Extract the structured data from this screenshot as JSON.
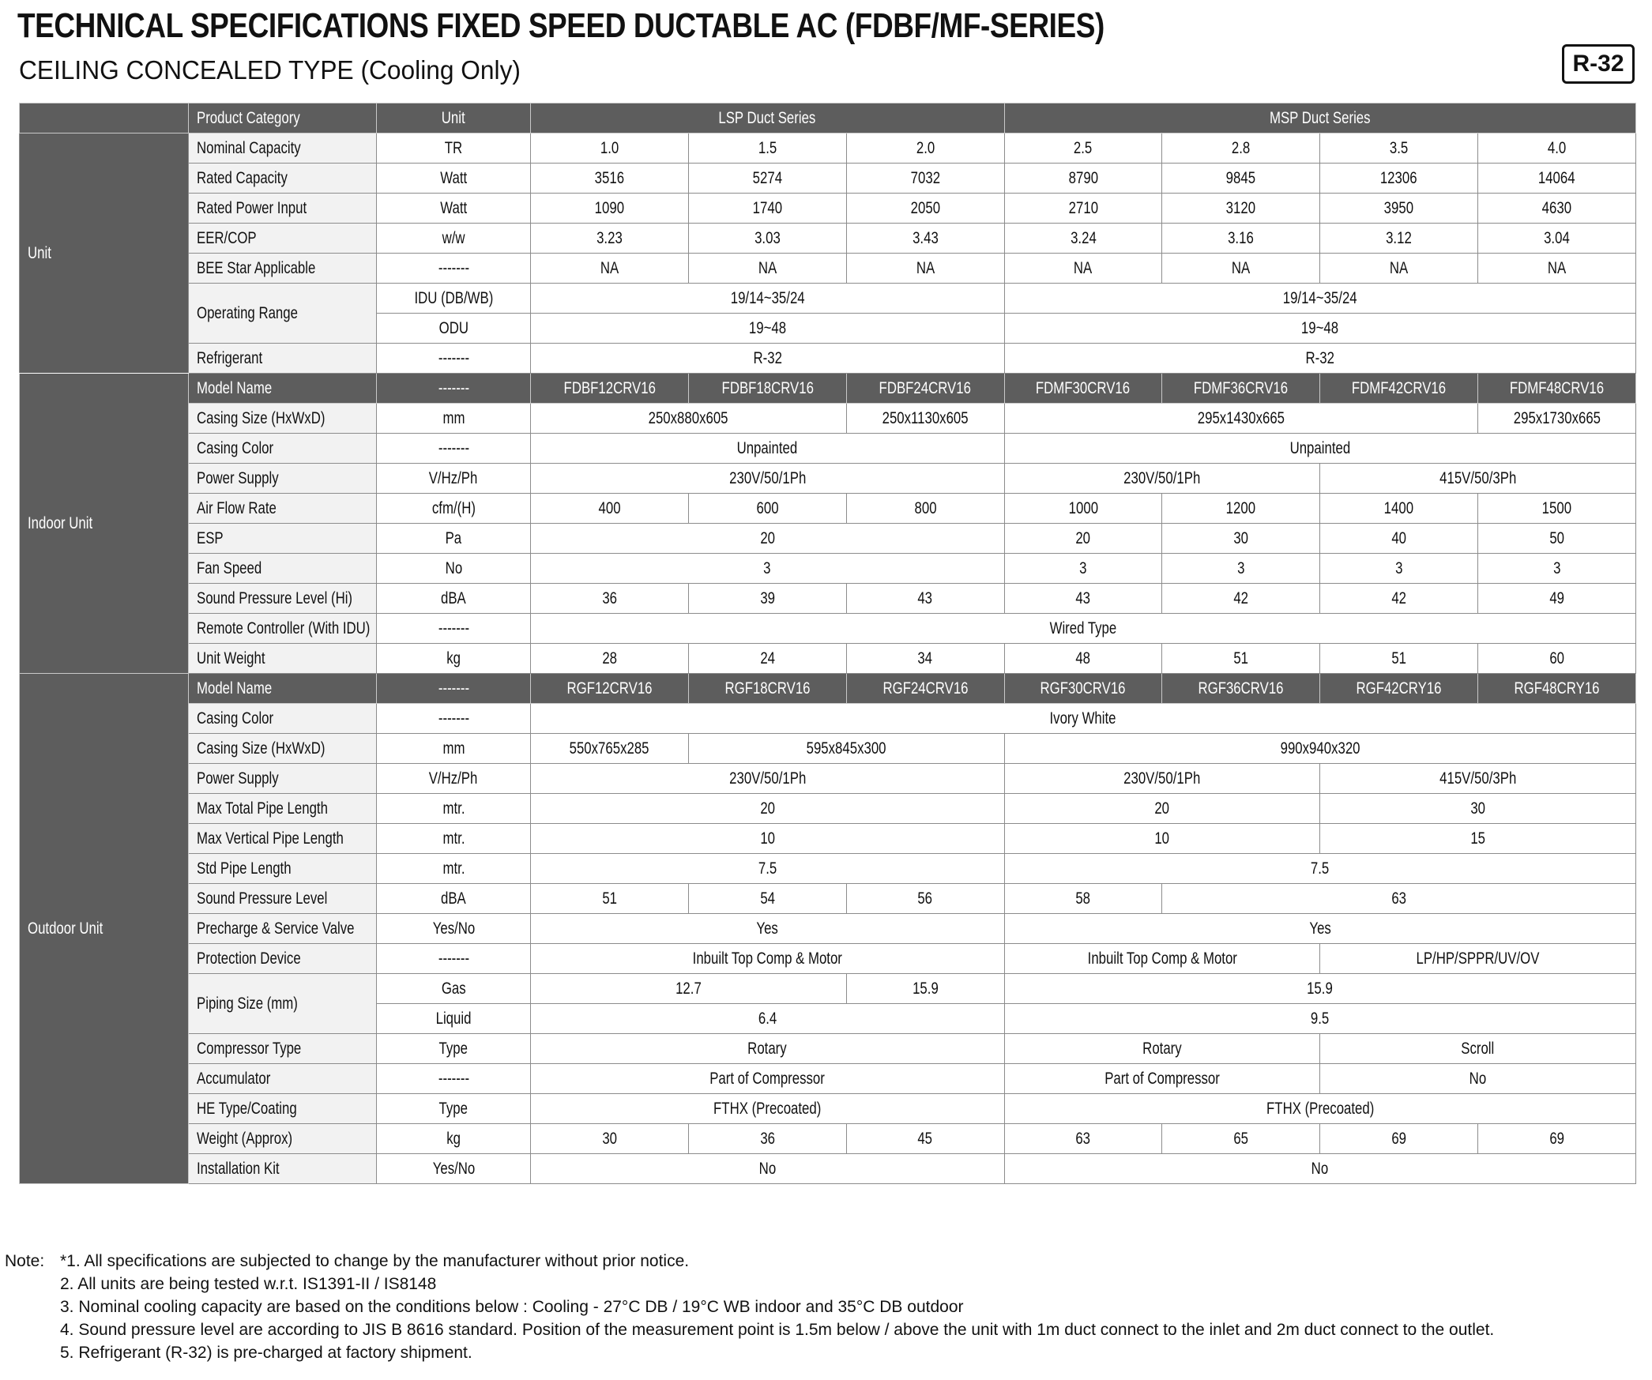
{
  "header": {
    "title": "TECHNICAL SPECIFICATIONS FIXED SPEED DUCTABLE AC (FDBF/MF-SERIES)",
    "subtitle": "CEILING CONCEALED  TYPE (Cooling Only)",
    "badge": "R-32"
  },
  "table": {
    "head": {
      "label": "Product Category",
      "unit": "Unit",
      "cells": [
        "LSP Duct Series",
        null,
        null,
        "MSP Duct Series",
        null,
        null,
        null
      ]
    },
    "sections": [
      {
        "name": "Unit",
        "rows": [
          {
            "label": "Nominal Capacity",
            "unit": "TR",
            "cells": [
              "1.0",
              "1.5",
              "2.0",
              "2.5",
              "2.8",
              "3.5",
              "4.0"
            ]
          },
          {
            "label": "Rated Capacity",
            "unit": "Watt",
            "cells": [
              "3516",
              "5274",
              "7032",
              "8790",
              "9845",
              "12306",
              "14064"
            ]
          },
          {
            "label": "Rated Power Input",
            "unit": "Watt",
            "cells": [
              "1090",
              "1740",
              "2050",
              "2710",
              "3120",
              "3950",
              "4630"
            ]
          },
          {
            "label": "EER/COP",
            "unit": "w/w",
            "cells": [
              "3.23",
              "3.03",
              "3.43",
              "3.24",
              "3.16",
              "3.12",
              "3.04"
            ]
          },
          {
            "label": "BEE Star Applicable",
            "unit": "-------",
            "cells": [
              "NA",
              "NA",
              "NA",
              "NA",
              "NA",
              "NA",
              "NA"
            ]
          },
          {
            "label": "Operating Range",
            "subrows": [
              {
                "unit": "IDU (DB/WB)",
                "cells": [
                  "19/14~35/24",
                  null,
                  null,
                  "19/14~35/24",
                  null,
                  null,
                  null
                ]
              },
              {
                "unit": "ODU",
                "cells": [
                  "19~48",
                  null,
                  null,
                  "19~48",
                  null,
                  null,
                  null
                ]
              }
            ]
          },
          {
            "label": "Refrigerant",
            "unit": "-------",
            "cells": [
              "R-32",
              null,
              null,
              "R-32",
              null,
              null,
              null
            ]
          }
        ]
      },
      {
        "name": "Indoor Unit",
        "rows": [
          {
            "label": "Model Name",
            "unit": "-------",
            "shaded": true,
            "cells": [
              "FDBF12CRV16",
              "FDBF18CRV16",
              "FDBF24CRV16",
              "FDMF30CRV16",
              "FDMF36CRV16",
              "FDMF42CRV16",
              "FDMF48CRV16"
            ]
          },
          {
            "label": "Casing Size (HxWxD)",
            "unit": "mm",
            "cells": [
              "250x880x605",
              null,
              "250x1130x605",
              "295x1430x665",
              null,
              null,
              "295x1730x665"
            ]
          },
          {
            "label": "Casing Color",
            "unit": "-------",
            "cells": [
              "Unpainted",
              null,
              null,
              "Unpainted",
              null,
              null,
              null
            ]
          },
          {
            "label": "Power Supply",
            "unit": "V/Hz/Ph",
            "cells": [
              "230V/50/1Ph",
              null,
              null,
              "230V/50/1Ph",
              null,
              "415V/50/3Ph",
              null
            ]
          },
          {
            "label": "Air Flow Rate",
            "unit": "cfm/(H)",
            "cells": [
              "400",
              "600",
              "800",
              "1000",
              "1200",
              "1400",
              "1500"
            ]
          },
          {
            "label": "ESP",
            "unit": "Pa",
            "cells": [
              "20",
              null,
              null,
              "20",
              "30",
              "40",
              "50"
            ]
          },
          {
            "label": "Fan Speed",
            "unit": "No",
            "cells": [
              "3",
              null,
              null,
              "3",
              "3",
              "3",
              "3"
            ]
          },
          {
            "label": "Sound Pressure Level (Hi)",
            "unit": "dBA",
            "cells": [
              "36",
              "39",
              "43",
              "43",
              "42",
              "42",
              "49"
            ]
          },
          {
            "label": "Remote Controller (With IDU)",
            "unit": "-------",
            "cells": [
              "Wired Type",
              null,
              null,
              null,
              null,
              null,
              null
            ]
          },
          {
            "label": "Unit Weight",
            "unit": "kg",
            "cells": [
              "28",
              "24",
              "34",
              "48",
              "51",
              "51",
              "60"
            ]
          }
        ]
      },
      {
        "name": "Outdoor Unit",
        "rows": [
          {
            "label": "Model Name",
            "unit": "-------",
            "shaded": true,
            "cells": [
              "RGF12CRV16",
              "RGF18CRV16",
              "RGF24CRV16",
              "RGF30CRV16",
              "RGF36CRV16",
              "RGF42CRY16",
              "RGF48CRY16"
            ]
          },
          {
            "label": "Casing Color",
            "unit": "-------",
            "cells": [
              "Ivory White",
              null,
              null,
              null,
              null,
              null,
              null
            ]
          },
          {
            "label": "Casing Size (HxWxD)",
            "unit": "mm",
            "cells": [
              "550x765x285",
              "595x845x300",
              null,
              "990x940x320",
              null,
              null,
              null
            ]
          },
          {
            "label": "Power Supply",
            "unit": "V/Hz/Ph",
            "cells": [
              "230V/50/1Ph",
              null,
              null,
              "230V/50/1Ph",
              null,
              "415V/50/3Ph",
              null
            ]
          },
          {
            "label": "Max Total Pipe Length",
            "unit": "mtr.",
            "cells": [
              "20",
              null,
              null,
              "20",
              null,
              "30",
              null
            ]
          },
          {
            "label": "Max Vertical Pipe Length",
            "unit": "mtr.",
            "cells": [
              "10",
              null,
              null,
              "10",
              null,
              "15",
              null
            ]
          },
          {
            "label": "Std Pipe Length",
            "unit": "mtr.",
            "cells": [
              "7.5",
              null,
              null,
              "7.5",
              null,
              null,
              null
            ]
          },
          {
            "label": "Sound Pressure Level",
            "unit": "dBA",
            "cells": [
              "51",
              "54",
              "56",
              "58",
              "63",
              null,
              null
            ]
          },
          {
            "label": "Precharge & Service Valve",
            "unit": "Yes/No",
            "cells": [
              "Yes",
              null,
              null,
              "Yes",
              null,
              null,
              null
            ]
          },
          {
            "label": "Protection Device",
            "unit": "-------",
            "cells": [
              "Inbuilt Top Comp & Motor",
              null,
              null,
              "Inbuilt Top Comp & Motor",
              null,
              "LP/HP/SPPR/UV/OV",
              null
            ]
          },
          {
            "label": "Piping Size (mm)",
            "subrows": [
              {
                "unit": "Gas",
                "cells": [
                  "12.7",
                  null,
                  "15.9",
                  "15.9",
                  null,
                  null,
                  null
                ]
              },
              {
                "unit": "Liquid",
                "cells": [
                  "6.4",
                  null,
                  null,
                  "9.5",
                  null,
                  null,
                  null
                ]
              }
            ]
          },
          {
            "label": "Compressor Type",
            "unit": "Type",
            "cells": [
              "Rotary",
              null,
              null,
              "Rotary",
              null,
              "Scroll",
              null
            ]
          },
          {
            "label": "Accumulator",
            "unit": "-------",
            "cells": [
              "Part of Compressor",
              null,
              null,
              "Part of Compressor",
              null,
              "No",
              null
            ]
          },
          {
            "label": "HE Type/Coating",
            "unit": "Type",
            "cells": [
              "FTHX (Precoated)",
              null,
              null,
              "FTHX (Precoated)",
              null,
              null,
              null
            ]
          },
          {
            "label": "Weight (Approx)",
            "unit": "kg",
            "cells": [
              "30",
              "36",
              "45",
              "63",
              "65",
              "69",
              "69"
            ]
          },
          {
            "label": "Installation Kit",
            "unit": "Yes/No",
            "cells": [
              "No",
              null,
              null,
              "No",
              null,
              null,
              null
            ]
          }
        ]
      }
    ]
  },
  "notes": {
    "label": "Note:",
    "items": [
      "*1. All specifications are subjected to change by the manufacturer without prior notice.",
      "2.  All units are being tested w.r.t. IS1391-II / IS8148",
      "3.  Nominal cooling capacity are based on the conditions below : Cooling - 27°C DB / 19°C WB indoor and 35°C DB outdoor",
      "4.  Sound pressure level are according to JIS B 8616 standard. Position of the measurement point is 1.5m below / above the unit with 1m duct connect to the inlet and 2m duct connect to the outlet.",
      "5.  Refrigerant (R-32) is pre-charged at factory shipment."
    ]
  }
}
